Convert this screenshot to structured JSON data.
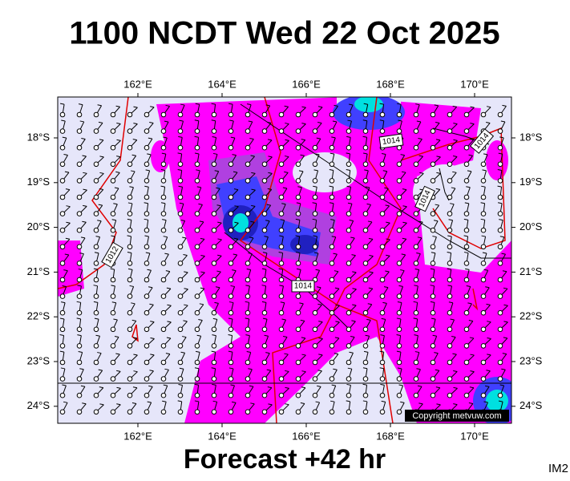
{
  "header": {
    "title": "1100 NCDT Wed 22 Oct 2025"
  },
  "map": {
    "lon_labels": [
      "162°E",
      "164°E",
      "166°E",
      "168°E",
      "170°E"
    ],
    "lat_labels": [
      "18°S",
      "19°S",
      "20°S",
      "21°S",
      "22°S",
      "23°S",
      "24°S"
    ],
    "isobar_labels": [
      "1014",
      "1014",
      "1014",
      "1014",
      "1012"
    ],
    "copyright": "Copyright metvuw.com"
  },
  "footer": {
    "forecast": "Forecast +42 hr",
    "code": "IM2"
  }
}
